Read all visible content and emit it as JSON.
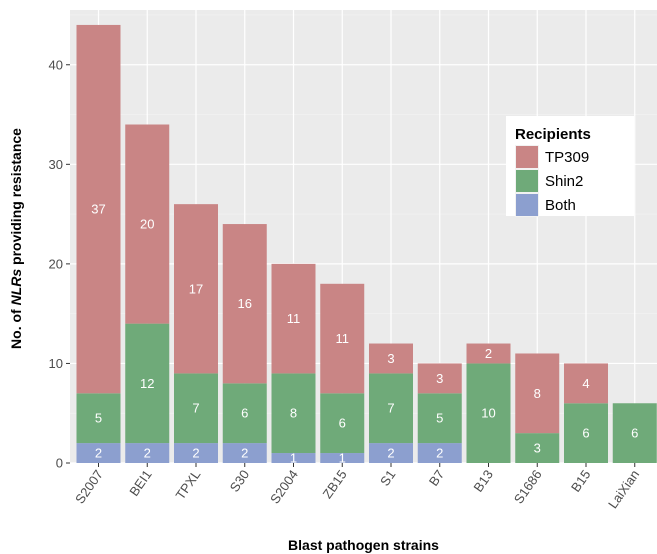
{
  "chart_data": {
    "type": "bar",
    "stacked": true,
    "title": "",
    "xlabel": "Blast pathogen strains",
    "ylabel_prefix": "No. of ",
    "ylabel_italic": "NLRs",
    "ylabel_suffix": " providing resistance",
    "categories": [
      "S2007",
      "BEI1",
      "TPXL",
      "S30",
      "S2004",
      "ZB15",
      "S1",
      "B7",
      "B13",
      "S1686",
      "B15",
      "LaiXian"
    ],
    "series": [
      {
        "name": "Both",
        "color": "#8c9fcf",
        "values": [
          2,
          2,
          2,
          2,
          1,
          1,
          2,
          2,
          0,
          0,
          0,
          0
        ]
      },
      {
        "name": "Shin2",
        "color": "#6faa79",
        "values": [
          5,
          12,
          7,
          6,
          8,
          6,
          7,
          5,
          10,
          3,
          6,
          6
        ]
      },
      {
        "name": "TP309",
        "color": "#c98585",
        "values": [
          37,
          20,
          17,
          16,
          11,
          11,
          3,
          3,
          2,
          8,
          4,
          0
        ]
      }
    ],
    "ylim": [
      0,
      45.5
    ],
    "yticks": [
      0,
      10,
      20,
      30,
      40
    ],
    "grid": true,
    "legend": {
      "title": "Recipients",
      "position": "right",
      "entries": [
        "TP309",
        "Shin2",
        "Both"
      ]
    }
  }
}
